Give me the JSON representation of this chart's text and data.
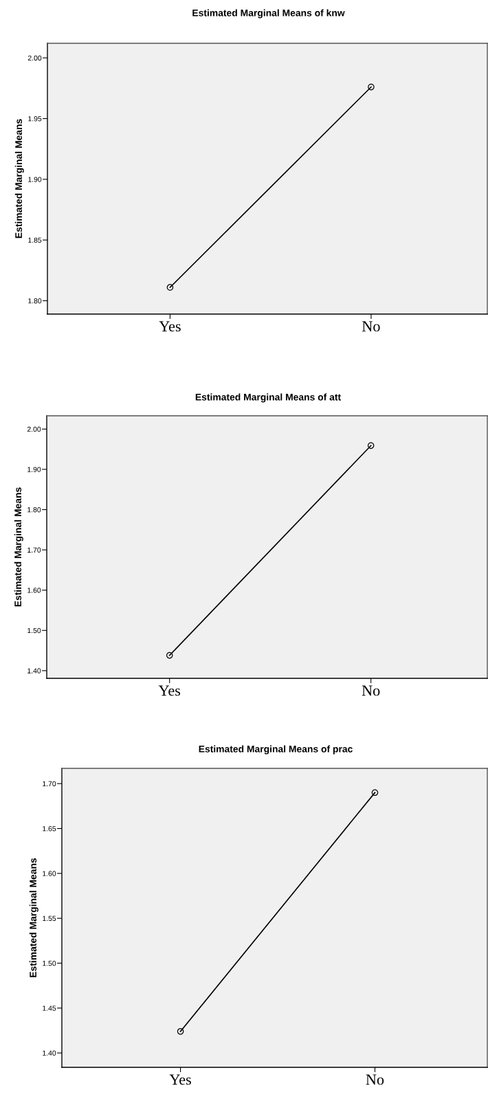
{
  "chart_data": [
    {
      "type": "line",
      "title": "Estimated Marginal Means of knw",
      "ylabel": "Estimated Marginal Means",
      "categories": [
        "Yes",
        "No"
      ],
      "series": [
        {
          "color": "#000000",
          "values": [
            1.811,
            1.976
          ]
        }
      ],
      "ylim": [
        1.789,
        2.012
      ],
      "yticks": [
        {
          "value": 1.8,
          "label": "1.80"
        },
        {
          "value": 1.85,
          "label": "1.85"
        },
        {
          "value": 1.9,
          "label": "1.90"
        },
        {
          "value": 1.95,
          "label": "1.95"
        },
        {
          "value": 2.0,
          "label": "2.00"
        }
      ],
      "marker": "circle",
      "grid": false,
      "legend": false
    },
    {
      "type": "line",
      "title": "Estimated Marginal Means of att",
      "ylabel": "Estimated Marginal Means",
      "categories": [
        "Yes",
        "No"
      ],
      "series": [
        {
          "color": "#000000",
          "values": [
            1.438,
            1.959
          ]
        }
      ],
      "ylim": [
        1.381,
        2.033
      ],
      "yticks": [
        {
          "value": 1.4,
          "label": "1.40"
        },
        {
          "value": 1.5,
          "label": "1.50"
        },
        {
          "value": 1.6,
          "label": "1.60"
        },
        {
          "value": 1.7,
          "label": "1.70"
        },
        {
          "value": 1.8,
          "label": "1.80"
        },
        {
          "value": 1.9,
          "label": "1.90"
        },
        {
          "value": 2.0,
          "label": "2.00"
        }
      ],
      "marker": "circle",
      "grid": false,
      "legend": false
    },
    {
      "type": "line",
      "title": "Estimated Marginal Means of prac",
      "ylabel": "Estimated Marginal Means",
      "categories": [
        "Yes",
        "No"
      ],
      "series": [
        {
          "color": "#000000",
          "values": [
            1.424,
            1.69
          ]
        }
      ],
      "ylim": [
        1.384,
        1.717
      ],
      "yticks": [
        {
          "value": 1.4,
          "label": "1.40"
        },
        {
          "value": 1.45,
          "label": "1.45"
        },
        {
          "value": 1.5,
          "label": "1.50"
        },
        {
          "value": 1.55,
          "label": "1.55"
        },
        {
          "value": 1.6,
          "label": "1.60"
        },
        {
          "value": 1.65,
          "label": "1.65"
        },
        {
          "value": 1.7,
          "label": "1.70"
        }
      ],
      "marker": "circle",
      "grid": false,
      "legend": false
    }
  ]
}
